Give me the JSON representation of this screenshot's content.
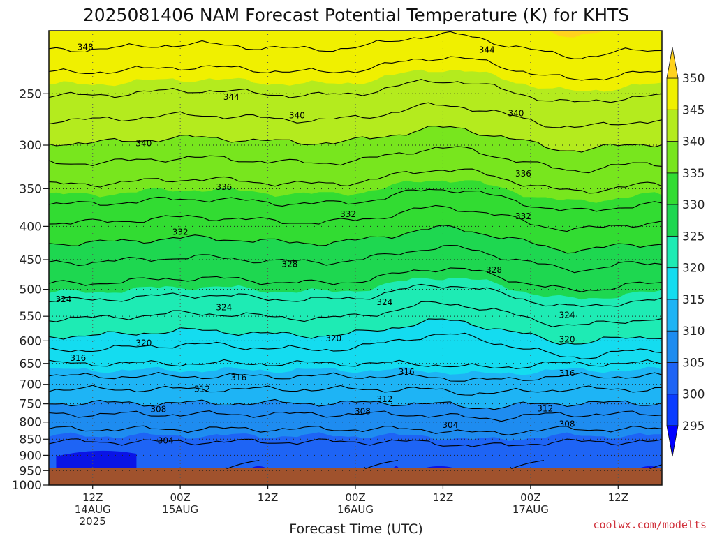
{
  "chart_data": {
    "type": "contour",
    "title": "2025081406 NAM Forecast Potential Temperature (K) for KHTS",
    "xlabel": "Forecast Time (UTC)",
    "ylabel": "",
    "y_axis": {
      "scale": "log",
      "inverted": true,
      "range": [
        1000,
        200
      ],
      "ticks": [
        250,
        300,
        350,
        400,
        450,
        500,
        550,
        600,
        650,
        700,
        750,
        800,
        850,
        900,
        950,
        1000
      ]
    },
    "x_axis": {
      "range_hours": [
        0,
        84
      ],
      "ticks": [
        {
          "hour": 6,
          "line1": "12Z",
          "line2": "14AUG",
          "line3": "2025"
        },
        {
          "hour": 18,
          "line1": "00Z",
          "line2": "15AUG",
          "line3": ""
        },
        {
          "hour": 30,
          "line1": "12Z",
          "line2": "",
          "line3": ""
        },
        {
          "hour": 42,
          "line1": "00Z",
          "line2": "16AUG",
          "line3": ""
        },
        {
          "hour": 54,
          "line1": "12Z",
          "line2": "",
          "line3": ""
        },
        {
          "hour": 66,
          "line1": "00Z",
          "line2": "17AUG",
          "line3": ""
        },
        {
          "hour": 78,
          "line1": "12Z",
          "line2": "",
          "line3": ""
        }
      ]
    },
    "grid": "dotted",
    "contour_interval_K": 2,
    "fill_levels": [
      295,
      300,
      305,
      310,
      315,
      320,
      325,
      330,
      335,
      340,
      345,
      350
    ],
    "fill_colors": [
      "#0000ff",
      "#0a3cff",
      "#1e64f5",
      "#1e8cf0",
      "#1eb4f5",
      "#14dcf0",
      "#1eebb4",
      "#1ed750",
      "#32dc32",
      "#78e61e",
      "#b4eb1e",
      "#f0f000",
      "#ffd21e"
    ],
    "colorbar": {
      "ticks": [
        295,
        300,
        305,
        310,
        315,
        320,
        325,
        330,
        335,
        340,
        345,
        350
      ],
      "placement": "right",
      "extend": "both"
    },
    "ground_color": "#a0522d",
    "isentrope_base_pressure_hPa": [
      {
        "theta": 302,
        "p": 990
      },
      {
        "theta": 304,
        "p": 858
      },
      {
        "theta": 306,
        "p": 820
      },
      {
        "theta": 308,
        "p": 778
      },
      {
        "theta": 310,
        "p": 748
      },
      {
        "theta": 312,
        "p": 712
      },
      {
        "theta": 314,
        "p": 680
      },
      {
        "theta": 316,
        "p": 650
      },
      {
        "theta": 318,
        "p": 620
      },
      {
        "theta": 320,
        "p": 590
      },
      {
        "theta": 322,
        "p": 555
      },
      {
        "theta": 324,
        "p": 520
      },
      {
        "theta": 326,
        "p": 490
      },
      {
        "theta": 328,
        "p": 455
      },
      {
        "theta": 330,
        "p": 425
      },
      {
        "theta": 332,
        "p": 395
      },
      {
        "theta": 334,
        "p": 370
      },
      {
        "theta": 336,
        "p": 345
      },
      {
        "theta": 338,
        "p": 320
      },
      {
        "theta": 340,
        "p": 298
      },
      {
        "theta": 342,
        "p": 275
      },
      {
        "theta": 344,
        "p": 252
      },
      {
        "theta": 346,
        "p": 232
      },
      {
        "theta": 348,
        "p": 214
      }
    ],
    "contour_labels": [
      {
        "text": "348",
        "hour": 5,
        "p": 212
      },
      {
        "text": "344",
        "hour": 60,
        "p": 214
      },
      {
        "text": "344",
        "hour": 25,
        "p": 253
      },
      {
        "text": "340",
        "hour": 34,
        "p": 270
      },
      {
        "text": "340",
        "hour": 64,
        "p": 268
      },
      {
        "text": "340",
        "hour": 13,
        "p": 298
      },
      {
        "text": "336",
        "hour": 24,
        "p": 348
      },
      {
        "text": "336",
        "hour": 65,
        "p": 332
      },
      {
        "text": "332",
        "hour": 18,
        "p": 408
      },
      {
        "text": "332",
        "hour": 41,
        "p": 383
      },
      {
        "text": "332",
        "hour": 65,
        "p": 386
      },
      {
        "text": "328",
        "hour": 33,
        "p": 457
      },
      {
        "text": "328",
        "hour": 61,
        "p": 467
      },
      {
        "text": "324",
        "hour": 2,
        "p": 518
      },
      {
        "text": "324",
        "hour": 24,
        "p": 533
      },
      {
        "text": "324",
        "hour": 46,
        "p": 523
      },
      {
        "text": "324",
        "hour": 71,
        "p": 548
      },
      {
        "text": "320",
        "hour": 13,
        "p": 605
      },
      {
        "text": "320",
        "hour": 39,
        "p": 595
      },
      {
        "text": "320",
        "hour": 71,
        "p": 597
      },
      {
        "text": "316",
        "hour": 4,
        "p": 638
      },
      {
        "text": "316",
        "hour": 26,
        "p": 683
      },
      {
        "text": "316",
        "hour": 49,
        "p": 670
      },
      {
        "text": "316",
        "hour": 71,
        "p": 673
      },
      {
        "text": "312",
        "hour": 21,
        "p": 712
      },
      {
        "text": "312",
        "hour": 46,
        "p": 738
      },
      {
        "text": "312",
        "hour": 68,
        "p": 763
      },
      {
        "text": "308",
        "hour": 15,
        "p": 765
      },
      {
        "text": "308",
        "hour": 43,
        "p": 770
      },
      {
        "text": "308",
        "hour": 71,
        "p": 805
      },
      {
        "text": "304",
        "hour": 16,
        "p": 855
      },
      {
        "text": "304",
        "hour": 55,
        "p": 808
      }
    ]
  },
  "credit": "coolwx.com/modelts"
}
